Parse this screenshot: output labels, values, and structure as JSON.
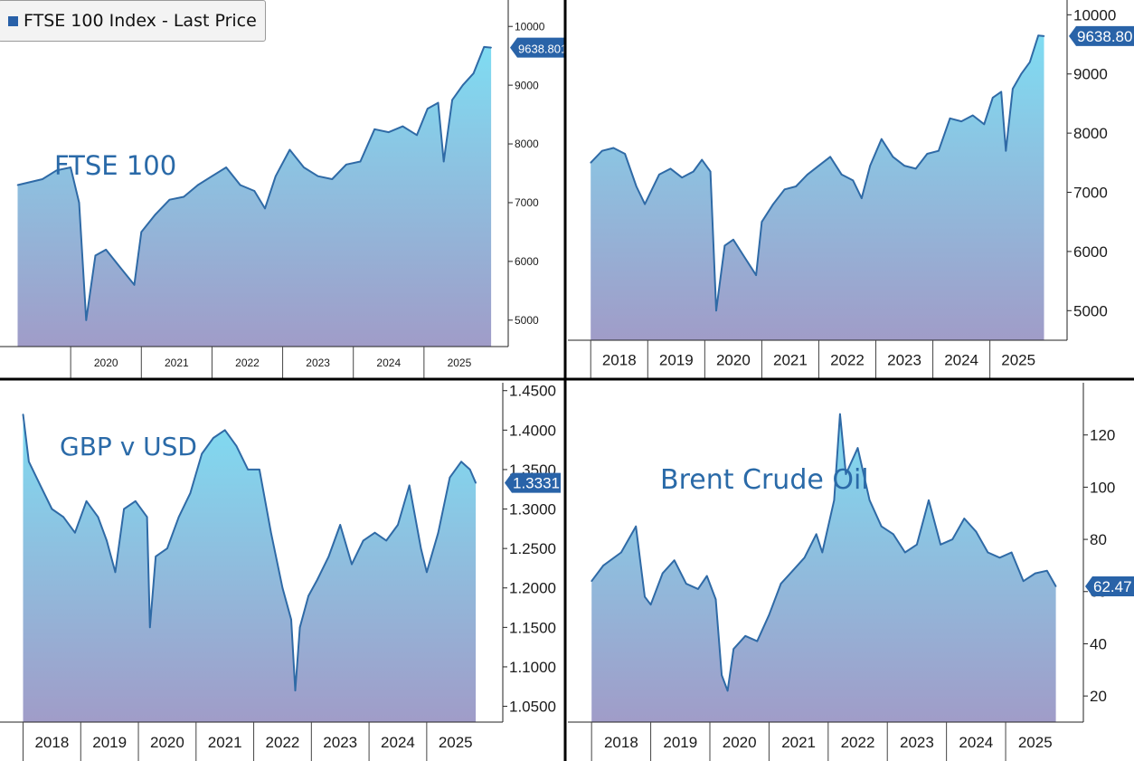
{
  "legend": {
    "label": "FTSE 100 Index - Last Price",
    "color": "#2860a8"
  },
  "colors": {
    "line": "#2f6aa6",
    "fill_top": "#7fdcf2",
    "fill_bottom": "#a09cc8",
    "badge": "#2963a8",
    "divider": "#000000"
  },
  "chart_data": [
    {
      "type": "area",
      "title": "FTSE 100",
      "ylim": [
        4550,
        10450
      ],
      "yticks": [
        "5000",
        "6000",
        "7000",
        "8000",
        "9000",
        "10000"
      ],
      "xticks": [
        "2020",
        "2021",
        "2022",
        "2023",
        "2024",
        "2025"
      ],
      "last_value": "9638.801",
      "x": [
        2019.25,
        2019.6,
        2019.8,
        2020.0,
        2020.12,
        2020.22,
        2020.35,
        2020.5,
        2020.7,
        2020.9,
        2021.0,
        2021.2,
        2021.4,
        2021.6,
        2021.8,
        2022.0,
        2022.2,
        2022.4,
        2022.6,
        2022.75,
        2022.9,
        2023.1,
        2023.3,
        2023.5,
        2023.7,
        2023.9,
        2024.1,
        2024.3,
        2024.5,
        2024.7,
        2024.9,
        2025.05,
        2025.2,
        2025.28,
        2025.4,
        2025.55,
        2025.7,
        2025.85,
        2025.95
      ],
      "y": [
        7300,
        7400,
        7550,
        7600,
        7000,
        5000,
        6100,
        6200,
        5900,
        5600,
        6500,
        6800,
        7050,
        7100,
        7300,
        7450,
        7600,
        7300,
        7200,
        6900,
        7450,
        7900,
        7600,
        7450,
        7400,
        7650,
        7700,
        8250,
        8200,
        8300,
        8150,
        8600,
        8700,
        7700,
        8750,
        9000,
        9200,
        9650,
        9640
      ]
    },
    {
      "type": "area",
      "title": "",
      "ylim": [
        4500,
        10250
      ],
      "yticks": [
        "5000",
        "6000",
        "7000",
        "8000",
        "9000",
        "10000"
      ],
      "xticks": [
        "2018",
        "2019",
        "2020",
        "2021",
        "2022",
        "2023",
        "2024",
        "2025"
      ],
      "last_value": "9638.80",
      "x": [
        2018.0,
        2018.2,
        2018.4,
        2018.6,
        2018.8,
        2018.95,
        2019.2,
        2019.4,
        2019.6,
        2019.8,
        2019.95,
        2020.1,
        2020.2,
        2020.35,
        2020.5,
        2020.7,
        2020.9,
        2021.0,
        2021.2,
        2021.4,
        2021.6,
        2021.8,
        2022.0,
        2022.2,
        2022.4,
        2022.6,
        2022.75,
        2022.9,
        2023.1,
        2023.3,
        2023.5,
        2023.7,
        2023.9,
        2024.1,
        2024.3,
        2024.5,
        2024.7,
        2024.9,
        2025.05,
        2025.2,
        2025.28,
        2025.4,
        2025.55,
        2025.7,
        2025.85,
        2025.95
      ],
      "y": [
        7500,
        7700,
        7750,
        7650,
        7100,
        6800,
        7300,
        7400,
        7250,
        7350,
        7550,
        7350,
        5000,
        6100,
        6200,
        5900,
        5600,
        6500,
        6800,
        7050,
        7100,
        7300,
        7450,
        7600,
        7300,
        7200,
        6900,
        7450,
        7900,
        7600,
        7450,
        7400,
        7650,
        7700,
        8250,
        8200,
        8300,
        8150,
        8600,
        8700,
        7700,
        8750,
        9000,
        9200,
        9650,
        9640
      ]
    },
    {
      "type": "area",
      "title": "GBP v USD",
      "ylim": [
        1.03,
        1.46
      ],
      "yticks": [
        "1.0500",
        "1.1000",
        "1.1500",
        "1.2000",
        "1.2500",
        "1.3000",
        "1.3500",
        "1.4000",
        "1.4500"
      ],
      "xticks": [
        "2018",
        "2019",
        "2020",
        "2021",
        "2022",
        "2023",
        "2024",
        "2025"
      ],
      "last_value": "1.3331",
      "x": [
        2018.0,
        2018.1,
        2018.3,
        2018.5,
        2018.7,
        2018.9,
        2019.1,
        2019.3,
        2019.45,
        2019.6,
        2019.75,
        2019.95,
        2020.15,
        2020.2,
        2020.3,
        2020.5,
        2020.7,
        2020.9,
        2021.1,
        2021.3,
        2021.5,
        2021.7,
        2021.9,
        2022.1,
        2022.3,
        2022.5,
        2022.65,
        2022.72,
        2022.8,
        2022.95,
        2023.1,
        2023.3,
        2023.5,
        2023.7,
        2023.9,
        2024.1,
        2024.3,
        2024.5,
        2024.7,
        2024.9,
        2025.0,
        2025.2,
        2025.4,
        2025.6,
        2025.75,
        2025.85
      ],
      "y": [
        1.42,
        1.36,
        1.33,
        1.3,
        1.29,
        1.27,
        1.31,
        1.29,
        1.26,
        1.22,
        1.3,
        1.31,
        1.29,
        1.15,
        1.24,
        1.25,
        1.29,
        1.32,
        1.37,
        1.39,
        1.4,
        1.38,
        1.35,
        1.35,
        1.27,
        1.2,
        1.16,
        1.07,
        1.15,
        1.19,
        1.21,
        1.24,
        1.28,
        1.23,
        1.26,
        1.27,
        1.26,
        1.28,
        1.33,
        1.25,
        1.22,
        1.27,
        1.34,
        1.36,
        1.35,
        1.3331
      ]
    },
    {
      "type": "area",
      "title": "Brent Crude Oil",
      "ylim": [
        10,
        140
      ],
      "yticks": [
        "20",
        "40",
        "60",
        "80",
        "100",
        "120"
      ],
      "xticks": [
        "2018",
        "2019",
        "2020",
        "2021",
        "2022",
        "2023",
        "2024",
        "2025"
      ],
      "last_value": "62.47",
      "x": [
        2018.0,
        2018.2,
        2018.5,
        2018.75,
        2018.9,
        2019.0,
        2019.2,
        2019.4,
        2019.6,
        2019.8,
        2019.95,
        2020.1,
        2020.2,
        2020.3,
        2020.4,
        2020.6,
        2020.8,
        2021.0,
        2021.2,
        2021.4,
        2021.6,
        2021.8,
        2021.9,
        2022.1,
        2022.2,
        2022.3,
        2022.5,
        2022.7,
        2022.9,
        2023.1,
        2023.3,
        2023.5,
        2023.7,
        2023.9,
        2024.1,
        2024.3,
        2024.5,
        2024.7,
        2024.9,
        2025.1,
        2025.3,
        2025.5,
        2025.7,
        2025.85
      ],
      "y": [
        64,
        70,
        75,
        85,
        58,
        55,
        67,
        72,
        63,
        61,
        66,
        57,
        28,
        22,
        38,
        43,
        41,
        51,
        63,
        68,
        73,
        82,
        75,
        95,
        128,
        105,
        115,
        95,
        85,
        82,
        75,
        78,
        95,
        78,
        80,
        88,
        83,
        75,
        73,
        75,
        64,
        67,
        68,
        62
      ]
    }
  ]
}
